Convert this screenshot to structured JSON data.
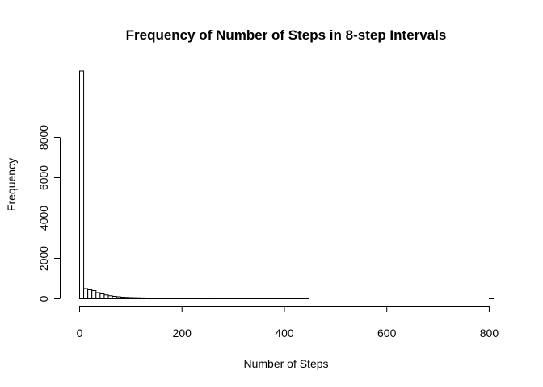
{
  "chart_data": {
    "type": "bar",
    "title": "Frequency of Number of Steps in 8-step Intervals",
    "xlabel": "Number of Steps",
    "ylabel": "Frequency",
    "bin_width": 8,
    "xlim": [
      0,
      808
    ],
    "ylim": [
      0,
      11200
    ],
    "x_ticks": [
      0,
      200,
      400,
      600,
      800
    ],
    "y_ticks": [
      0,
      2000,
      4000,
      6000,
      8000
    ],
    "grid": false,
    "bins_start": [
      0,
      8,
      16,
      24,
      32,
      40,
      48,
      56,
      64,
      72,
      80,
      88,
      96,
      104,
      112,
      120,
      128,
      136,
      144,
      152,
      160,
      168,
      176,
      184,
      192,
      200,
      208,
      216,
      224,
      232,
      240,
      248,
      256,
      264,
      272,
      280,
      288,
      296,
      304,
      312,
      320,
      328,
      336,
      344,
      352,
      360,
      368,
      376,
      384,
      392,
      400,
      408,
      416,
      424,
      432,
      440,
      448,
      456,
      464,
      472,
      480,
      488,
      496,
      504,
      512,
      520,
      528,
      536,
      544,
      552,
      560,
      568,
      576,
      584,
      592,
      600,
      608,
      616,
      624,
      632,
      640,
      648,
      656,
      664,
      672,
      680,
      688,
      696,
      704,
      712,
      720,
      728,
      736,
      744,
      752,
      760,
      768,
      776,
      784,
      792,
      800
    ],
    "values": [
      11300,
      500,
      440,
      400,
      300,
      240,
      190,
      150,
      120,
      100,
      80,
      70,
      60,
      55,
      50,
      45,
      40,
      35,
      30,
      28,
      26,
      24,
      22,
      20,
      12,
      10,
      9,
      8,
      7,
      6,
      5,
      5,
      4,
      4,
      3,
      3,
      3,
      2,
      2,
      2,
      2,
      2,
      1,
      1,
      1,
      1,
      1,
      1,
      1,
      1,
      1,
      1,
      1,
      1,
      1,
      1,
      0,
      0,
      0,
      0,
      0,
      0,
      0,
      0,
      0,
      0,
      0,
      0,
      0,
      0,
      0,
      0,
      0,
      0,
      0,
      0,
      0,
      0,
      0,
      0,
      0,
      0,
      0,
      0,
      0,
      0,
      0,
      0,
      0,
      0,
      0,
      0,
      0,
      0,
      0,
      0,
      0,
      0,
      0,
      0,
      1
    ]
  }
}
